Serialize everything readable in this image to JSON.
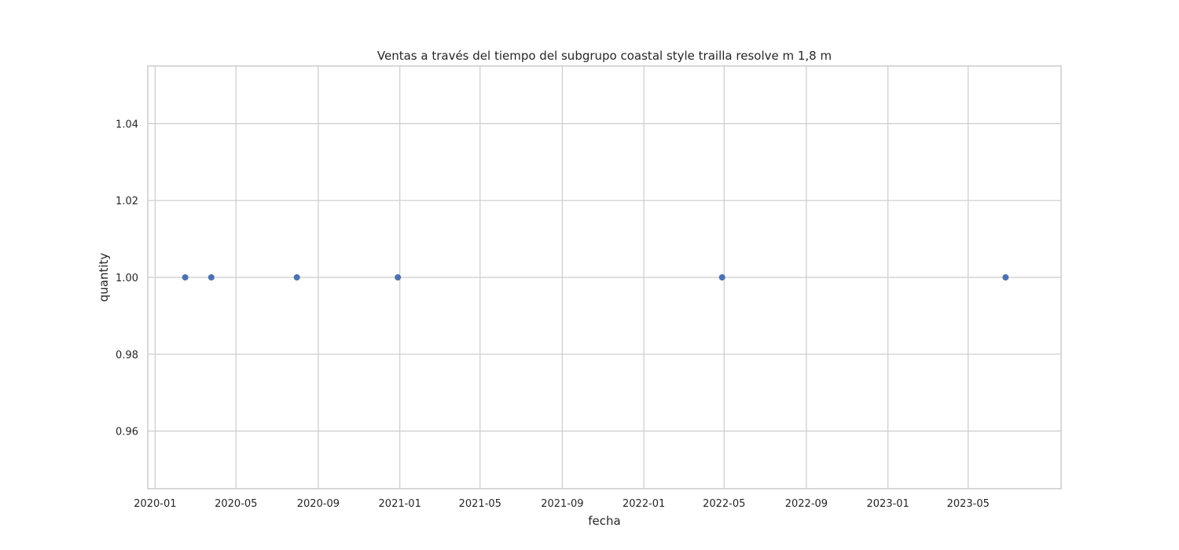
{
  "chart_data": {
    "type": "scatter",
    "title": "Ventas a través del tiempo del subgrupo coastal style trailla resolve m 1,8 m",
    "xlabel": "fecha",
    "ylabel": "quantity",
    "x_axis_type": "date",
    "xlim": [
      "2019-12-21",
      "2023-09-17"
    ],
    "ylim": [
      0.945,
      1.055
    ],
    "x_ticks": [
      "2020-01",
      "2020-05",
      "2020-09",
      "2021-01",
      "2021-05",
      "2021-09",
      "2022-01",
      "2022-05",
      "2022-09",
      "2023-01",
      "2023-05"
    ],
    "y_ticks": [
      0.96,
      0.98,
      1.0,
      1.02,
      1.04
    ],
    "y_tick_labels": [
      "0.96",
      "0.98",
      "1.00",
      "1.02",
      "1.04"
    ],
    "grid": true,
    "marker_color": "#4c72b0",
    "points": [
      {
        "x": "2020-02-15",
        "y": 1.0
      },
      {
        "x": "2020-03-25",
        "y": 1.0
      },
      {
        "x": "2020-07-31",
        "y": 1.0
      },
      {
        "x": "2020-12-29",
        "y": 1.0
      },
      {
        "x": "2022-04-28",
        "y": 1.0
      },
      {
        "x": "2023-06-26",
        "y": 1.0
      }
    ]
  }
}
